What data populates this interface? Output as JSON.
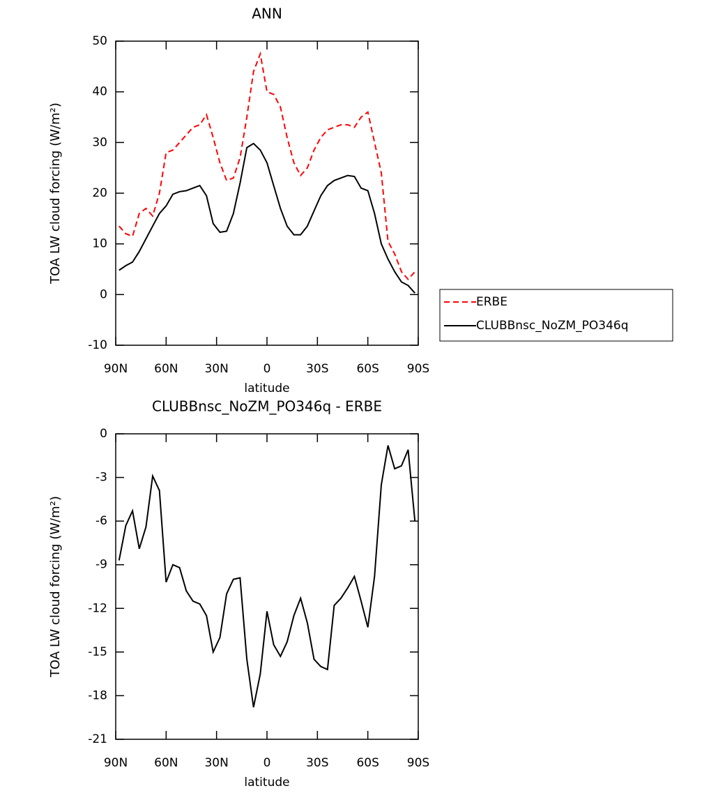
{
  "chart_data": [
    {
      "type": "line",
      "title": "ANN",
      "xlabel": "latitude",
      "ylabel": "TOA LW cloud forcing (W/m²)",
      "x": [
        88,
        84,
        80,
        76,
        72,
        68,
        64,
        60,
        56,
        52,
        48,
        44,
        40,
        36,
        32,
        28,
        24,
        20,
        16,
        12,
        8,
        4,
        0,
        -4,
        -8,
        -12,
        -16,
        -20,
        -24,
        -28,
        -32,
        -36,
        -40,
        -44,
        -48,
        -52,
        -56,
        -60,
        -64,
        -68,
        -72,
        -76,
        -80,
        -84,
        -88
      ],
      "xlim": [
        90,
        -90
      ],
      "xticks": [
        {
          "value": 90,
          "label": "90N"
        },
        {
          "value": 60,
          "label": "60N"
        },
        {
          "value": 30,
          "label": "30N"
        },
        0,
        {
          "value": -30,
          "label": "30S"
        },
        {
          "value": -60,
          "label": "60S"
        },
        {
          "value": -90,
          "label": "90S"
        }
      ],
      "ylim": [
        -10,
        50
      ],
      "yticks": [
        -10,
        0,
        10,
        20,
        30,
        40,
        50
      ],
      "legend": "right",
      "series": [
        {
          "name": "ERBE",
          "color": "#ff0000",
          "linestyle": "dashed",
          "values": [
            13.5,
            12,
            11.5,
            16,
            17,
            15.5,
            20,
            28,
            28.5,
            30,
            31.5,
            33,
            33.5,
            35.5,
            31,
            26,
            22.5,
            23,
            27,
            35,
            44,
            47.5,
            40,
            39.5,
            37,
            31,
            26,
            23.5,
            25,
            28.5,
            31,
            32.5,
            33,
            33.5,
            33.5,
            33,
            35,
            36,
            30,
            24,
            10.5,
            8,
            4.5,
            3,
            4.5
          ]
        },
        {
          "name": "CLUBBnsc_NoZM_PO346q",
          "color": "#000000",
          "linestyle": "solid",
          "values": [
            4.8,
            5.7,
            6.4,
            8.5,
            11,
            13.5,
            16,
            17.5,
            19.8,
            20.3,
            20.5,
            21,
            21.5,
            19.5,
            14,
            12.3,
            12.5,
            16,
            22,
            29,
            29.8,
            28.5,
            26,
            21.5,
            17,
            13.5,
            11.8,
            11.8,
            13.5,
            16.5,
            19.5,
            21.5,
            22.5,
            23,
            23.5,
            23.3,
            21,
            20.5,
            16,
            10,
            7,
            4.5,
            2.5,
            1.8,
            0.3
          ]
        }
      ]
    },
    {
      "type": "line",
      "title": "CLUBBnsc_NoZM_PO346q - ERBE",
      "xlabel": "latitude",
      "ylabel": "TOA LW cloud forcing (W/m²)",
      "x": [
        88,
        84,
        80,
        76,
        72,
        68,
        64,
        60,
        56,
        52,
        48,
        44,
        40,
        36,
        32,
        28,
        24,
        20,
        16,
        12,
        8,
        4,
        0,
        -4,
        -8,
        -12,
        -16,
        -20,
        -24,
        -28,
        -32,
        -36,
        -40,
        -44,
        -48,
        -52,
        -56,
        -60,
        -64,
        -68,
        -72,
        -76,
        -80,
        -84,
        -88
      ],
      "xlim": [
        90,
        -90
      ],
      "xticks": [
        {
          "value": 90,
          "label": "90N"
        },
        {
          "value": 60,
          "label": "60N"
        },
        {
          "value": 30,
          "label": "30N"
        },
        0,
        {
          "value": -30,
          "label": "30S"
        },
        {
          "value": -60,
          "label": "60S"
        },
        {
          "value": -90,
          "label": "90S"
        }
      ],
      "ylim": [
        -21,
        0
      ],
      "yticks": [
        -21,
        -18,
        -15,
        -12,
        -9,
        -6,
        -3,
        0
      ],
      "color": "#000000",
      "values": [
        -8.7,
        -6.3,
        -5.3,
        -7.9,
        -6.4,
        -2.9,
        -3.9,
        -10.2,
        -9,
        -9.2,
        -10.8,
        -11.5,
        -11.7,
        -12.5,
        -15,
        -14,
        -11,
        -10,
        -9.9,
        -15.5,
        -18.8,
        -16.5,
        -12.2,
        -14.5,
        -15.3,
        -14.3,
        -12.5,
        -11.3,
        -13,
        -15.5,
        -16,
        -16.2,
        -11.8,
        -11.3,
        -10.6,
        -9.8,
        -11.5,
        -13.3,
        -9.8,
        -3.5,
        -0.8,
        -2.4,
        -2.2,
        -1.1,
        -6
      ]
    }
  ]
}
